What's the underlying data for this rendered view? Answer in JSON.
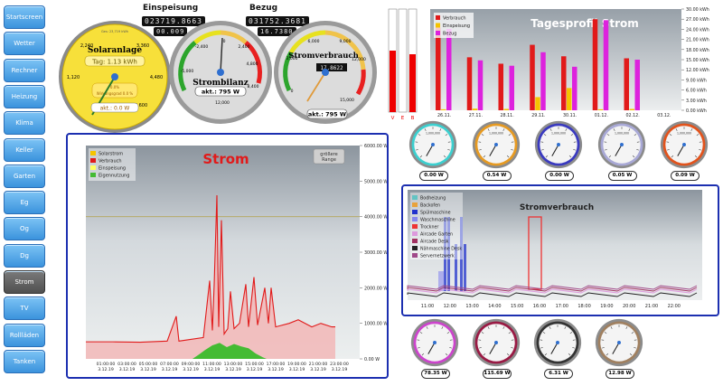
{
  "nav": {
    "items": [
      "Startscreen",
      "Wetter",
      "Rechner",
      "Heizung",
      "Klima",
      "Keller",
      "Garten",
      "Eg",
      "Og",
      "Dg",
      "Strom",
      "TV",
      "Rollläden",
      "Tanken"
    ],
    "active": "Strom"
  },
  "meters": {
    "einspeisung": {
      "label": "Einspeisung",
      "reading": "023719.8663",
      "sub": "00.009"
    },
    "bezug": {
      "label": "Bezug",
      "reading": "031752.3681",
      "sub": "16.7380"
    }
  },
  "solar_gauge": {
    "title": "Solaranlage",
    "day_text": "Tag: 1.13 kWh",
    "current": "akt.: 0.0 W",
    "ticks": [
      "1,120",
      "2,240",
      "3,360",
      "4,480",
      "5,600"
    ],
    "inner_top": "Ges: 23,719 kWh",
    "inner_bot1": "0.0%",
    "inner_bot2": "Wirkungsgrad 0.0 %",
    "value": 0
  },
  "strombilanz_gauge": {
    "title": "Strombilanz",
    "current": "akt.: 795 W",
    "ticks": [
      "-2,400",
      "-5,000",
      "0",
      "2,400",
      "4,800",
      "8,400",
      "12,000"
    ],
    "value": 795
  },
  "stromverbrauch_gauge": {
    "title": "Stromverbrauch",
    "current": "akt.: 795 W",
    "readout": "17.8622",
    "ticks": [
      "0",
      "3,000",
      "6,000",
      "9,000",
      "12,000",
      "15,000"
    ],
    "value": 795
  },
  "bars_small": {
    "labels": [
      "V",
      "E",
      "B"
    ]
  },
  "tagesprofil": {
    "chart_data": {
      "type": "bar",
      "title": "Tagesprofil Strom",
      "categories": [
        "26.11.",
        "27.11.",
        "28.11.",
        "29.11.",
        "30.11.",
        "01.12.",
        "02.12.",
        "03.12."
      ],
      "series": [
        {
          "name": "Verbrauch",
          "color": "#e11a1a",
          "values": [
            24.5,
            15.7,
            13.8,
            19.4,
            16.0,
            27.0,
            15.4,
            0
          ]
        },
        {
          "name": "Einspeisung",
          "color": "#f5c400",
          "values": [
            0.3,
            0.5,
            0.4,
            3.9,
            6.6,
            0.3,
            0.4,
            0
          ]
        },
        {
          "name": "Bezug",
          "color": "#dd22dd",
          "values": [
            24.1,
            14.8,
            13.2,
            17.2,
            12.9,
            26.7,
            15.0,
            0
          ]
        }
      ],
      "yticks": [
        "0.00 kWh",
        "3.00 kWh",
        "6.00 kWh",
        "9.00 kWh",
        "12.00 kWh",
        "15.00 kWh",
        "18.00 kWh",
        "21.00 kWh",
        "24.00 kWh",
        "27.00 kWh",
        "30.00 kWh"
      ],
      "ylim": [
        0,
        30
      ]
    }
  },
  "strom_chart": {
    "chart_data": {
      "type": "line",
      "title": "Strom",
      "legend": [
        "Solarstrom",
        "Verbrauch",
        "Einspeisung",
        "Eigennutzung"
      ],
      "legend_colors": [
        "#f5c400",
        "#e11a1a",
        "#ffff60",
        "#44bb33"
      ],
      "xticks": [
        [
          "01:00:00",
          "3.12.19"
        ],
        [
          "03:00:00",
          "3.12.19"
        ],
        [
          "05:00:00",
          "3.12.19"
        ],
        [
          "07:00:00",
          "3.12.19"
        ],
        [
          "09:00:00",
          "3.12.19"
        ],
        [
          "11:00:00",
          "3.12.19"
        ],
        [
          "13:00:00",
          "3.12.19"
        ],
        [
          "15:00:00",
          "3.12.19"
        ],
        [
          "17:00:00",
          "3.12.19"
        ],
        [
          "19:00:00",
          "3.12.19"
        ],
        [
          "21:00:00",
          "3.12.19"
        ],
        [
          "23:00:00",
          "3.12.19"
        ]
      ],
      "yticks": [
        "0.00 W",
        "1000.00 W",
        "2000.00 W",
        "3000.00 W",
        "4000.00 W",
        "5000.00 W",
        "6000.00 W"
      ],
      "ylim": [
        0,
        6000
      ],
      "range_button": "größere Range"
    }
  },
  "small_gauges_top": [
    {
      "top": "1,000,000",
      "val": "0.00 W",
      "color": "#3ccfcf"
    },
    {
      "top": "1,000,000",
      "val": "0.54 W",
      "color": "#e69a22"
    },
    {
      "top": "1,000,000",
      "val": "0.00 W",
      "color": "#3a3abf"
    },
    {
      "top": "1,000,000",
      "val": "0.05 W",
      "color": "#a8a8d6"
    },
    {
      "top": "1,000,000",
      "val": "0.09 W",
      "color": "#e2531c"
    }
  ],
  "stromverbrauch_chart": {
    "chart_data": {
      "type": "line",
      "title": "Stromverbrauch",
      "legend": [
        "Bodheizung",
        "Backofen",
        "Spülmaschine",
        "Waschmaschine",
        "Trockner",
        "Aircade Garten",
        "Aircade Desk",
        "Nähmaschine Desk",
        "Servernetzwerk"
      ],
      "legend_colors": [
        "#62c3c3",
        "#e8a23b",
        "#2233cc",
        "#8888ee",
        "#ee3333",
        "#dd99dd",
        "#a03060",
        "#222222",
        "#a04a8a"
      ],
      "xticks": [
        "11:00",
        "12:00",
        "13:00",
        "14:00",
        "15:00",
        "16:00",
        "17:00",
        "18:00",
        "19:00",
        "20:00",
        "21:00",
        "22:00"
      ]
    }
  },
  "small_gauges_bottom": [
    {
      "val": "78.35 W",
      "color": "#cc44cc"
    },
    {
      "val": "115.69 W",
      "color": "#991a44"
    },
    {
      "val": "6.31 W",
      "color": "#333333"
    },
    {
      "val": "12.98 W",
      "color": "#a08060"
    }
  ]
}
